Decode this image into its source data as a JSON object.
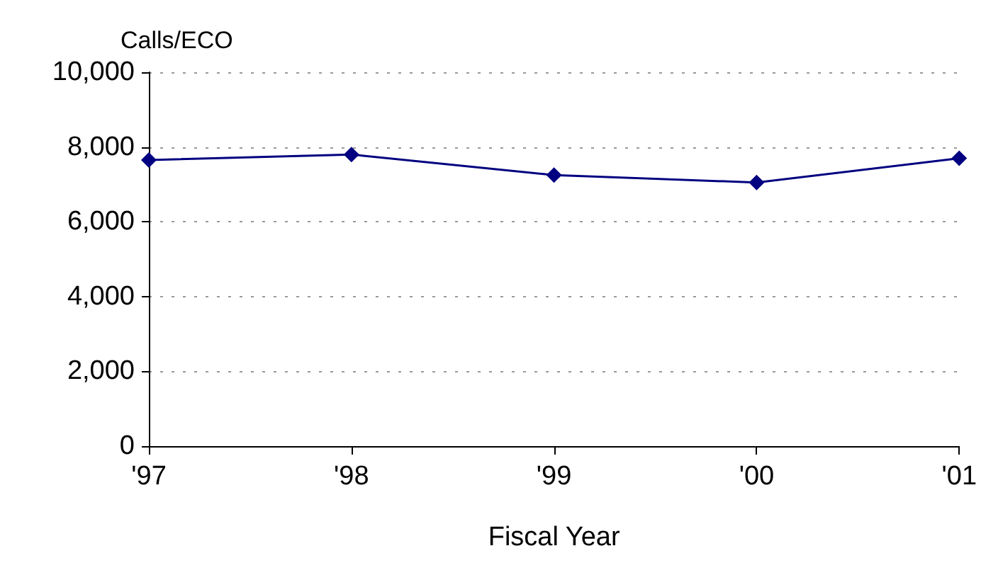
{
  "chart_data": {
    "type": "line",
    "ylabel": "Calls/ECO",
    "xlabel": "Fiscal Year",
    "categories": [
      "'97",
      "'98",
      "'99",
      "'00",
      "'01"
    ],
    "series": [
      {
        "color": "#000080",
        "values": [
          7650,
          7800,
          7250,
          7050,
          7700
        ]
      }
    ],
    "ylim": [
      0,
      10000
    ],
    "yticks": [
      0,
      {
        "value": 2000,
        "label": "2,000"
      },
      {
        "value": 4000,
        "label": "4,000"
      },
      {
        "value": 6000,
        "label": "6,000"
      },
      {
        "value": 8000,
        "label": "8,000"
      },
      {
        "value": 10000,
        "label": "10,000"
      }
    ],
    "grid": "y",
    "marker": "diamond",
    "line_style": "solid"
  }
}
